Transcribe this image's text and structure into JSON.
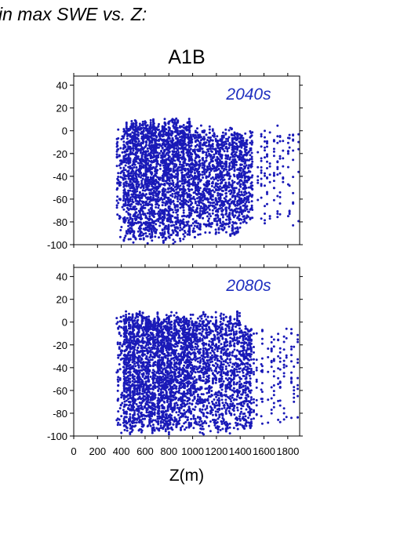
{
  "header": {
    "figure_title": "in max SWE vs. Z:",
    "scenario": "A1B"
  },
  "colors": {
    "points": "#1a1ab8",
    "panel_label": "#1f2fbf",
    "axes": "#000000"
  },
  "chart_data": [
    {
      "type": "scatter",
      "title": "2040s",
      "xlabel": "",
      "ylabel": "",
      "xlim": [
        0,
        1900
      ],
      "ylim": [
        -100,
        48
      ],
      "yticks": [
        40,
        20,
        0,
        -20,
        -40,
        -60,
        -80,
        -100
      ],
      "grid": false,
      "point_density": [
        {
          "z_range": [
            360,
            420
          ],
          "y_range": [
            -95,
            5
          ],
          "density": "medium"
        },
        {
          "z_range": [
            420,
            980
          ],
          "y_range": [
            -100,
            12
          ],
          "density": "very high"
        },
        {
          "z_range": [
            980,
            1400
          ],
          "y_range": [
            -95,
            5
          ],
          "density": "high"
        },
        {
          "z_range": [
            1400,
            1500
          ],
          "y_range": [
            -85,
            3
          ],
          "density": "high"
        },
        {
          "z_range": [
            1500,
            1900
          ],
          "y_range": [
            -88,
            6
          ],
          "density": "sparse columns"
        }
      ]
    },
    {
      "type": "scatter",
      "title": "2080s",
      "xlabel": "Z(m)",
      "ylabel": "",
      "xlim": [
        0,
        1900
      ],
      "ylim": [
        -100,
        48
      ],
      "yticks": [
        40,
        20,
        0,
        -20,
        -40,
        -60,
        -80,
        -100
      ],
      "xticks": [
        0,
        200,
        400,
        600,
        800,
        1000,
        1200,
        1400,
        1600,
        1800
      ],
      "grid": false,
      "point_density": [
        {
          "z_range": [
            360,
            420
          ],
          "y_range": [
            -100,
            10
          ],
          "density": "medium"
        },
        {
          "z_range": [
            420,
            980
          ],
          "y_range": [
            -100,
            10
          ],
          "density": "very high"
        },
        {
          "z_range": [
            980,
            1400
          ],
          "y_range": [
            -100,
            10
          ],
          "density": "high"
        },
        {
          "z_range": [
            1400,
            1500
          ],
          "y_range": [
            -100,
            3
          ],
          "density": "high"
        },
        {
          "z_range": [
            1500,
            1900
          ],
          "y_range": [
            -100,
            0
          ],
          "density": "sparse columns"
        }
      ]
    }
  ]
}
